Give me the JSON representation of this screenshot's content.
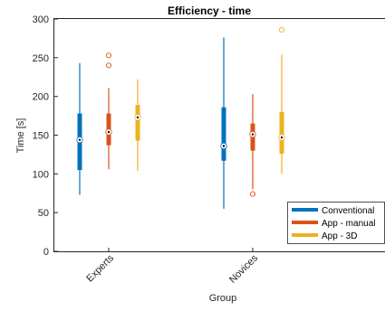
{
  "chart_data": {
    "type": "boxplot",
    "title": "Efficiency - time",
    "xlabel": "Group",
    "ylabel": "Time [s]",
    "ylim": [
      0,
      300
    ],
    "yticks": [
      0,
      50,
      100,
      150,
      200,
      250,
      300
    ],
    "categories": [
      "Experts",
      "Novices"
    ],
    "grid": false,
    "legend_position": "bottom-right",
    "series": [
      {
        "name": "Conventional",
        "color": "#0072BD",
        "boxes": [
          {
            "whisker_low": 73,
            "q1": 105,
            "median": 144,
            "q3": 178,
            "whisker_high": 243,
            "outliers": []
          },
          {
            "whisker_low": 55,
            "q1": 117,
            "median": 136,
            "q3": 186,
            "whisker_high": 276,
            "outliers": []
          }
        ]
      },
      {
        "name": "App - manual",
        "color": "#D95319",
        "boxes": [
          {
            "whisker_low": 106,
            "q1": 137,
            "median": 154,
            "q3": 178,
            "whisker_high": 211,
            "outliers": [
              240,
              253
            ]
          },
          {
            "whisker_low": 80,
            "q1": 130,
            "median": 151,
            "q3": 165,
            "whisker_high": 203,
            "outliers": [
              74
            ]
          }
        ]
      },
      {
        "name": "App - 3D",
        "color": "#EDB120",
        "boxes": [
          {
            "whisker_low": 104,
            "q1": 143,
            "median": 173,
            "q3": 189,
            "whisker_high": 222,
            "outliers": []
          },
          {
            "whisker_low": 100,
            "q1": 126,
            "median": 147,
            "q3": 180,
            "whisker_high": 254,
            "outliers": [
              286
            ]
          }
        ]
      }
    ]
  }
}
